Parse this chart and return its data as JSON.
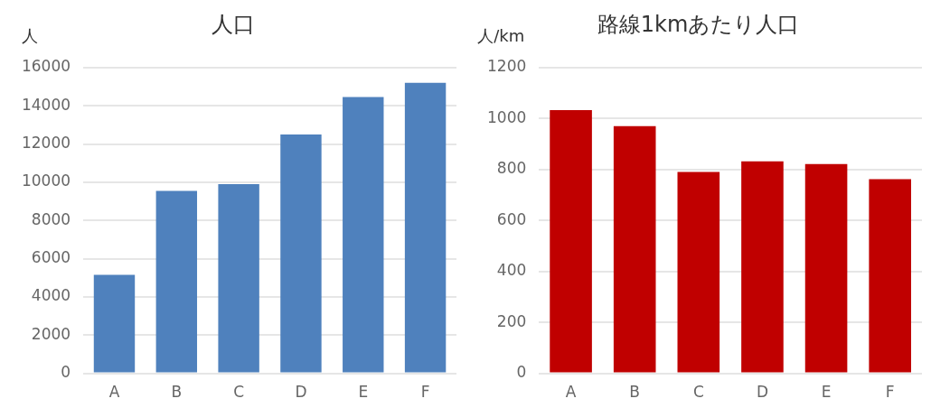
{
  "chart_data": [
    {
      "type": "bar",
      "title": "人口",
      "ylabel": "人",
      "categories": [
        "A",
        "B",
        "C",
        "D",
        "E",
        "F"
      ],
      "values": [
        5150,
        9550,
        9900,
        12500,
        14450,
        15200
      ],
      "color": "#4f81bd",
      "ylim": [
        0,
        16000
      ],
      "yticks": [
        0,
        2000,
        4000,
        6000,
        8000,
        10000,
        12000,
        14000,
        16000
      ],
      "grid": "y"
    },
    {
      "type": "bar",
      "title": "路線1kmあたり人口",
      "ylabel": "人/km",
      "categories": [
        "A",
        "B",
        "C",
        "D",
        "E",
        "F"
      ],
      "values": [
        1033,
        970,
        790,
        832,
        821,
        762
      ],
      "color": "#c00000",
      "ylim": [
        0,
        1200
      ],
      "yticks": [
        0,
        200,
        400,
        600,
        800,
        1000,
        1200
      ],
      "grid": "y"
    }
  ]
}
